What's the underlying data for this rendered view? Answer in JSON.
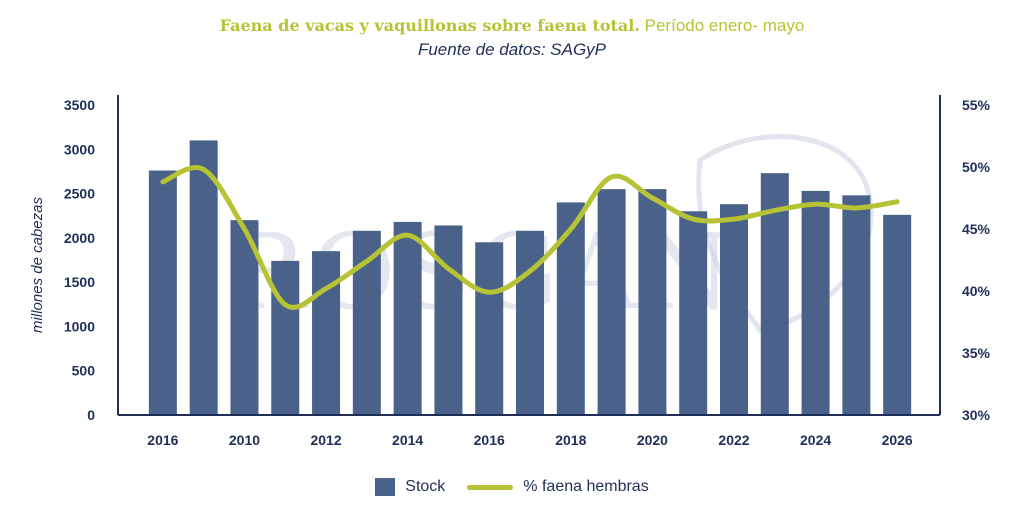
{
  "header": {
    "title_bold": "Faena de vacas y vaquillonas sobre faena total.",
    "title_rest": "Período enero- mayo",
    "subtitle": "Fuente de datos: SAGyP"
  },
  "watermark": "ROSGAN",
  "chart_data": {
    "type": "bar",
    "title": "Faena de vacas y vaquillonas sobre faena total. Período enero- mayo",
    "subtitle": "Fuente de datos: SAGyP",
    "ylabel": "millones de cabezas",
    "ylim": [
      0,
      3500
    ],
    "y_ticks": [
      "3500",
      "3000",
      "2500",
      "2000",
      "1500",
      "1000",
      "500",
      "0"
    ],
    "y2lim": [
      30,
      55
    ],
    "y2_ticks": [
      "55%",
      "50%",
      "45%",
      "40%",
      "35%",
      "30%"
    ],
    "x_tick_labels": [
      "2016",
      "2010",
      "2012",
      "2014",
      "2016",
      "2018",
      "2020",
      "2022",
      "2024",
      "2026"
    ],
    "grid": false,
    "legend_position": "bottom",
    "series": [
      {
        "name": "Stock",
        "type": "bar",
        "color": "#4a6189",
        "values": [
          2760,
          3100,
          2200,
          1740,
          1850,
          2080,
          2180,
          2140,
          1950,
          2080,
          2400,
          2550,
          2550,
          2300,
          2380,
          2730,
          2530,
          2480,
          2260
        ]
      },
      {
        "name": "% faena hembras",
        "type": "line",
        "axis": "right",
        "color": "#b5c334",
        "values": [
          48.8,
          49.8,
          45.0,
          38.9,
          40.2,
          42.4,
          44.5,
          41.8,
          39.9,
          41.6,
          45.0,
          49.2,
          47.5,
          45.8,
          45.8,
          46.5,
          47.0,
          46.7,
          47.2
        ]
      }
    ]
  }
}
